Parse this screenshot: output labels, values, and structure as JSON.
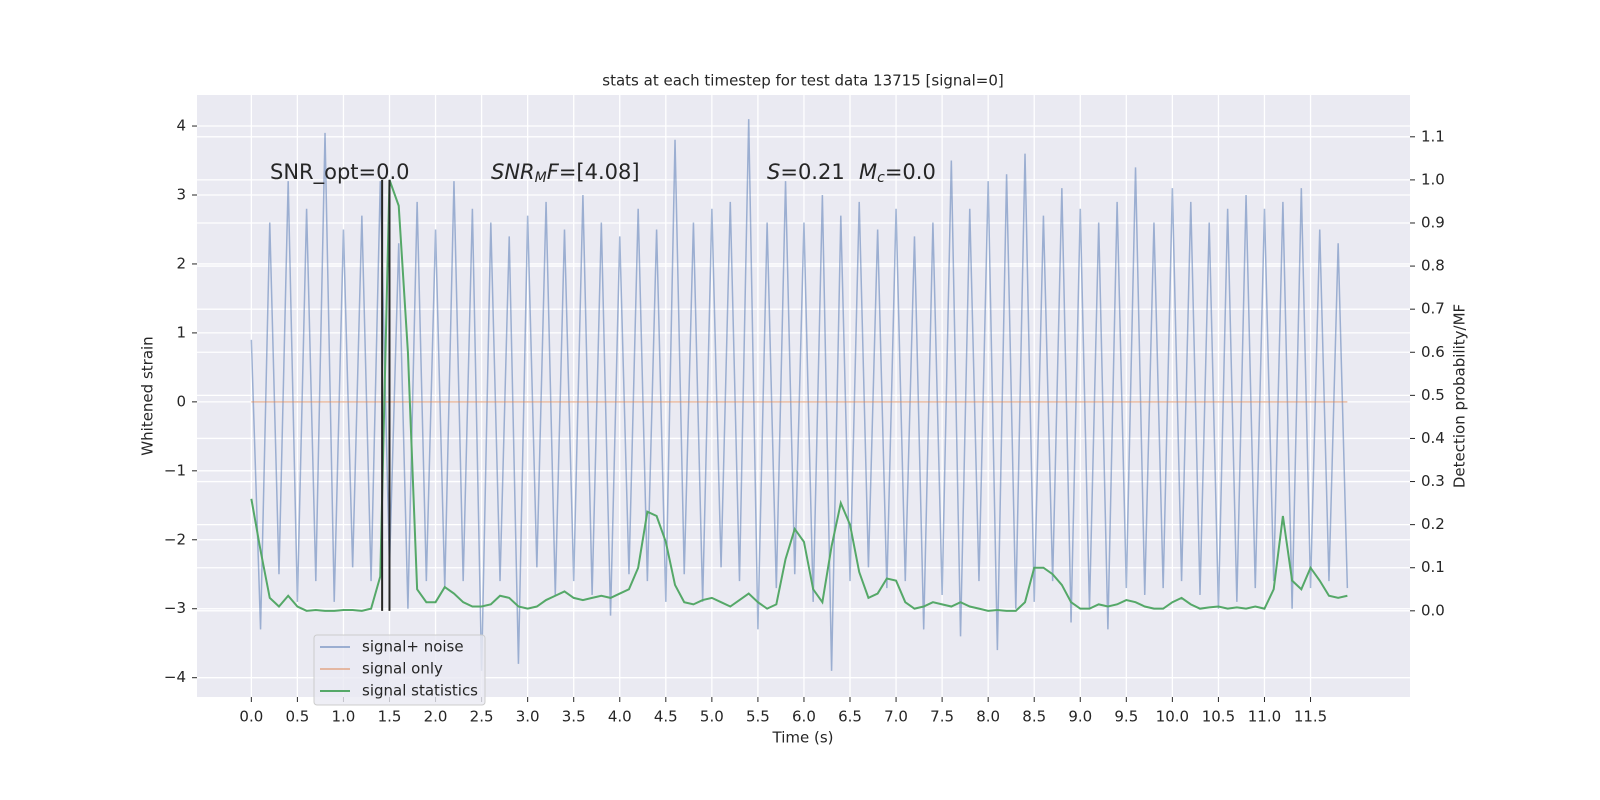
{
  "chart_data": {
    "type": "line",
    "title": "stats at each timestep for test data 13715 [signal=0]",
    "x_label": "Time (s)",
    "y_label": "Whitened strain",
    "y2_label": "Detection probability/MF",
    "xlim": [
      -0.59,
      12.58
    ],
    "ylim": [
      -4.28,
      4.45
    ],
    "y2lim": [
      -0.2,
      1.197
    ],
    "xticks": [
      {
        "value": 0,
        "label": "0.0"
      },
      0.5,
      {
        "value": 1,
        "label": "1.0"
      },
      1.5,
      {
        "value": 2,
        "label": "2.0"
      },
      2.5,
      {
        "value": 3,
        "label": "3.0"
      },
      3.5,
      {
        "value": 4,
        "label": "4.0"
      },
      4.5,
      {
        "value": 5,
        "label": "5.0"
      },
      5.5,
      {
        "value": 6,
        "label": "6.0"
      },
      6.5,
      {
        "value": 7,
        "label": "7.0"
      },
      7.5,
      {
        "value": 8,
        "label": "8.0"
      },
      8.5,
      {
        "value": 9,
        "label": "9.0"
      },
      9.5,
      {
        "value": 10,
        "label": "10.0"
      },
      10.5,
      {
        "value": 11,
        "label": "11.0"
      },
      11.5
    ],
    "yticks": [
      {
        "value": -4,
        "label": "−4"
      },
      {
        "value": -3,
        "label": "−3"
      },
      {
        "value": -2,
        "label": "−2"
      },
      {
        "value": -1,
        "label": "−1"
      },
      0,
      1,
      2,
      3,
      4
    ],
    "y2ticks": [
      {
        "value": 0,
        "label": "0.0"
      },
      0.1,
      0.2,
      0.3,
      0.4,
      0.5,
      0.6,
      0.7,
      0.8,
      0.9,
      {
        "value": 1,
        "label": "1.0"
      },
      1.1
    ],
    "grid": true,
    "legend": "lower left",
    "x": [
      0,
      0.1,
      0.2,
      0.3,
      0.4,
      0.5,
      0.6,
      0.7,
      0.8,
      0.9,
      1,
      1.1,
      1.2,
      1.3,
      1.4,
      1.5,
      1.6,
      1.7,
      1.8,
      1.9,
      2,
      2.1,
      2.2,
      2.3,
      2.4,
      2.5,
      2.6,
      2.7,
      2.8,
      2.9,
      3,
      3.1,
      3.2,
      3.3,
      3.4,
      3.5,
      3.6,
      3.7,
      3.8,
      3.9,
      4,
      4.1,
      4.2,
      4.3,
      4.4,
      4.5,
      4.6,
      4.7,
      4.8,
      4.9,
      5,
      5.1,
      5.2,
      5.3,
      5.4,
      5.5,
      5.6,
      5.7,
      5.8,
      5.9,
      6,
      6.1,
      6.2,
      6.3,
      6.4,
      6.5,
      6.6,
      6.7,
      6.8,
      6.9,
      7,
      7.1,
      7.2,
      7.3,
      7.4,
      7.5,
      7.6,
      7.7,
      7.8,
      7.9,
      8,
      8.1,
      8.2,
      8.3,
      8.4,
      8.5,
      8.6,
      8.7,
      8.8,
      8.9,
      9,
      9.1,
      9.2,
      9.3,
      9.4,
      9.5,
      9.6,
      9.7,
      9.8,
      9.9,
      10,
      10.1,
      10.2,
      10.3,
      10.4,
      10.5,
      10.6,
      10.7,
      10.8,
      10.9,
      11,
      11.1,
      11.2,
      11.3,
      11.4,
      11.5,
      11.6,
      11.7,
      11.8,
      11.9
    ],
    "series": [
      {
        "name": "signal+ noise",
        "color": "#4c72b0",
        "alpha": 0.5,
        "values": [
          0.9,
          -3.3,
          2.6,
          -2.5,
          3.2,
          -2.9,
          2.8,
          -2.6,
          3.9,
          -2.9,
          2.5,
          -2.4,
          2.7,
          -2.6,
          3.2,
          -2.4,
          2.3,
          -3.0,
          2.9,
          -2.6,
          2.5,
          -2.7,
          3.2,
          -2.6,
          2.8,
          -3.9,
          2.6,
          -2.6,
          2.4,
          -3.8,
          2.7,
          -2.4,
          2.9,
          -2.8,
          2.5,
          -2.6,
          3.0,
          -2.8,
          2.6,
          -3.1,
          2.4,
          -2.5,
          2.8,
          -2.6,
          2.5,
          -2.9,
          3.8,
          -2.5,
          2.6,
          -2.9,
          2.8,
          -2.4,
          2.9,
          -2.6,
          4.1,
          -3.3,
          2.6,
          -2.7,
          3.2,
          -2.5,
          2.6,
          -2.9,
          3.0,
          -3.9,
          2.7,
          -2.6,
          2.9,
          -2.4,
          2.5,
          -2.7,
          2.8,
          -2.6,
          2.4,
          -3.3,
          2.6,
          -2.8,
          3.5,
          -3.4,
          2.8,
          -2.6,
          3.2,
          -3.6,
          3.3,
          -3.0,
          3.6,
          -2.9,
          2.7,
          -2.6,
          3.1,
          -3.2,
          2.8,
          -3.0,
          2.6,
          -3.3,
          2.9,
          -2.7,
          3.4,
          -2.8,
          2.6,
          -2.7,
          3.1,
          -2.6,
          2.9,
          -2.8,
          2.6,
          -3.0,
          2.8,
          -2.9,
          3.0,
          -2.7,
          2.8,
          -2.6,
          2.9,
          -3.0,
          3.1,
          -2.7,
          2.5,
          -2.6,
          2.3,
          -2.7
        ]
      },
      {
        "name": "signal only",
        "color": "#dd8452",
        "alpha": 0.5,
        "values": [
          0,
          0,
          0,
          0,
          0,
          0,
          0,
          0,
          0,
          0,
          0,
          0,
          0,
          0,
          0,
          0,
          0,
          0,
          0,
          0,
          0,
          0,
          0,
          0,
          0,
          0,
          0,
          0,
          0,
          0,
          0,
          0,
          0,
          0,
          0,
          0,
          0,
          0,
          0,
          0,
          0,
          0,
          0,
          0,
          0,
          0,
          0,
          0,
          0,
          0,
          0,
          0,
          0,
          0,
          0,
          0,
          0,
          0,
          0,
          0,
          0,
          0,
          0,
          0,
          0,
          0,
          0,
          0,
          0,
          0,
          0,
          0,
          0,
          0,
          0,
          0,
          0,
          0,
          0,
          0,
          0,
          0,
          0,
          0,
          0,
          0,
          0,
          0,
          0,
          0,
          0,
          0,
          0,
          0,
          0,
          0,
          0,
          0,
          0,
          0,
          0,
          0,
          0,
          0,
          0,
          0,
          0,
          0,
          0,
          0,
          0,
          0,
          0,
          0,
          0,
          0,
          0,
          0,
          0,
          0
        ]
      },
      {
        "name": "signal statistics",
        "color": "#55a868",
        "alpha": 1,
        "axis": "y2",
        "values": [
          0.26,
          0.14,
          0.03,
          0.01,
          0.035,
          0.01,
          0,
          0.002,
          0,
          0,
          0.002,
          0.002,
          0,
          0.005,
          0.08,
          1.0,
          0.94,
          0.6,
          0.05,
          0.02,
          0.02,
          0.055,
          0.04,
          0.02,
          0.01,
          0.01,
          0.015,
          0.035,
          0.03,
          0.01,
          0.005,
          0.01,
          0.025,
          0.035,
          0.045,
          0.03,
          0.025,
          0.03,
          0.035,
          0.03,
          0.04,
          0.05,
          0.1,
          0.23,
          0.22,
          0.16,
          0.06,
          0.02,
          0.015,
          0.025,
          0.03,
          0.02,
          0.01,
          0.025,
          0.04,
          0.02,
          0.005,
          0.015,
          0.12,
          0.19,
          0.16,
          0.05,
          0.02,
          0.15,
          0.25,
          0.2,
          0.09,
          0.03,
          0.04,
          0.075,
          0.07,
          0.02,
          0.005,
          0.01,
          0.02,
          0.015,
          0.01,
          0.02,
          0.01,
          0.005,
          0,
          0.002,
          0,
          0,
          0.02,
          0.1,
          0.1,
          0.085,
          0.06,
          0.02,
          0.005,
          0.005,
          0.015,
          0.01,
          0.015,
          0.025,
          0.02,
          0.01,
          0.005,
          0.005,
          0.02,
          0.03,
          0.015,
          0.005,
          0.008,
          0.01,
          0.005,
          0.008,
          0.005,
          0.01,
          0.005,
          0.05,
          0.22,
          0.07,
          0.05,
          0.1,
          0.07,
          0.035,
          0.03,
          0.035
        ]
      }
    ],
    "vlines": {
      "x": [
        1.42,
        1.5
      ],
      "ymin": 0,
      "ymax": 1.0,
      "color": "#262626"
    },
    "annotations": [
      [
        {
          "text": "SNR_opt=0.0"
        }
      ],
      [
        {
          "text": "SNR",
          "style": "italic"
        },
        {
          "text": "M",
          "style": "italic-sub"
        },
        {
          "text": "F",
          "style": "italic"
        },
        {
          "text": "=[4.08]"
        }
      ],
      [
        {
          "text": "S",
          "style": "italic"
        },
        {
          "text": "=0.21"
        }
      ],
      [
        {
          "text": "M",
          "style": "italic"
        },
        {
          "text": "c",
          "style": "italic-sub"
        },
        {
          "text": "=0.0"
        }
      ]
    ]
  }
}
